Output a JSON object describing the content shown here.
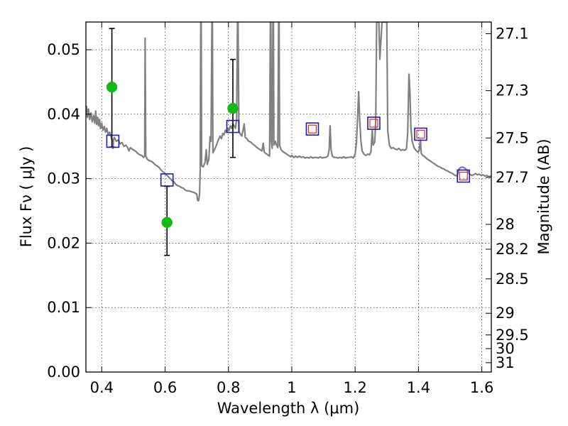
{
  "chart_data": {
    "type": "scatter",
    "title": "",
    "xlabel": "Wavelength  λ (μm)",
    "ylabel": "Flux  Fν  ( μJy )",
    "y2label": "Magnitude (AB)",
    "xlim": [
      0.35,
      1.63
    ],
    "ylim": [
      0.0,
      0.0543
    ],
    "grid": true,
    "x_ticks": [
      0.4,
      0.6,
      0.8,
      1.0,
      1.2,
      1.4,
      1.6
    ],
    "x_tick_labels": [
      "0.4",
      "0.6",
      "0.8",
      "1",
      "1.2",
      "1.4",
      "1.6"
    ],
    "y_ticks": [
      0.0,
      0.01,
      0.02,
      0.03,
      0.04,
      0.05
    ],
    "y_tick_labels": [
      "0.00",
      "0.01",
      "0.02",
      "0.03",
      "0.04",
      "0.05"
    ],
    "y2_ticks": [
      {
        "mag": 27.1,
        "label": "27.1"
      },
      {
        "mag": 27.3,
        "label": "27.3"
      },
      {
        "mag": 27.5,
        "label": "27.5"
      },
      {
        "mag": 27.7,
        "label": "27.7"
      },
      {
        "mag": 28.0,
        "label": "28"
      },
      {
        "mag": 28.2,
        "label": "28.2"
      },
      {
        "mag": 28.5,
        "label": "28.5"
      },
      {
        "mag": 29.0,
        "label": "29"
      },
      {
        "mag": 29.5,
        "label": "29.5"
      },
      {
        "mag": 30.0,
        "label": "30"
      },
      {
        "mag": 31.0,
        "label": "31"
      }
    ],
    "colors": {
      "spectrum": "#808080",
      "observed": "#11bb11",
      "model_box": "#1c1cb0",
      "model_inner": "#ee2222",
      "errorbar": "#000000"
    },
    "spectrum": {
      "name": "",
      "points": [
        [
          0.35,
          0.0405
        ],
        [
          0.352,
          0.0412
        ],
        [
          0.355,
          0.0395
        ],
        [
          0.358,
          0.0408
        ],
        [
          0.362,
          0.0392
        ],
        [
          0.366,
          0.0402
        ],
        [
          0.37,
          0.0388
        ],
        [
          0.374,
          0.0398
        ],
        [
          0.378,
          0.0386
        ],
        [
          0.381,
          0.0405
        ],
        [
          0.384,
          0.0384
        ],
        [
          0.387,
          0.0395
        ],
        [
          0.39,
          0.0382
        ],
        [
          0.393,
          0.0392
        ],
        [
          0.396,
          0.0378
        ],
        [
          0.4,
          0.0386
        ],
        [
          0.404,
          0.0375
        ],
        [
          0.408,
          0.0381
        ],
        [
          0.412,
          0.0372
        ],
        [
          0.416,
          0.0378
        ],
        [
          0.42,
          0.0369
        ],
        [
          0.425,
          0.0372
        ],
        [
          0.43,
          0.0364
        ],
        [
          0.434,
          0.0358
        ],
        [
          0.4355,
          0.0347
        ],
        [
          0.437,
          0.036
        ],
        [
          0.44,
          0.0364
        ],
        [
          0.446,
          0.0358
        ],
        [
          0.452,
          0.036
        ],
        [
          0.458,
          0.0354
        ],
        [
          0.464,
          0.0356
        ],
        [
          0.47,
          0.035
        ],
        [
          0.476,
          0.0352
        ],
        [
          0.482,
          0.0348
        ],
        [
          0.486,
          0.0343
        ],
        [
          0.49,
          0.0348
        ],
        [
          0.496,
          0.0346
        ],
        [
          0.502,
          0.0344
        ],
        [
          0.508,
          0.0342
        ],
        [
          0.514,
          0.0339
        ],
        [
          0.52,
          0.0337
        ],
        [
          0.526,
          0.0336
        ],
        [
          0.532,
          0.0333
        ],
        [
          0.5355,
          0.0335
        ],
        [
          0.537,
          0.0518
        ],
        [
          0.539,
          0.0335
        ],
        [
          0.544,
          0.033
        ],
        [
          0.55,
          0.0328
        ],
        [
          0.556,
          0.0327
        ],
        [
          0.562,
          0.0325
        ],
        [
          0.568,
          0.0322
        ],
        [
          0.574,
          0.032
        ],
        [
          0.58,
          0.0318
        ],
        [
          0.586,
          0.0314
        ],
        [
          0.592,
          0.0311
        ],
        [
          0.598,
          0.0309
        ],
        [
          0.604,
          0.0306
        ],
        [
          0.61,
          0.0303
        ],
        [
          0.616,
          0.03
        ],
        [
          0.622,
          0.0297
        ],
        [
          0.628,
          0.0295
        ],
        [
          0.634,
          0.0291
        ],
        [
          0.64,
          0.0289
        ],
        [
          0.646,
          0.0288
        ],
        [
          0.652,
          0.0286
        ],
        [
          0.658,
          0.0285
        ],
        [
          0.664,
          0.0282
        ],
        [
          0.67,
          0.0281
        ],
        [
          0.676,
          0.0281
        ],
        [
          0.682,
          0.028
        ],
        [
          0.688,
          0.0279
        ],
        [
          0.694,
          0.0278
        ],
        [
          0.7,
          0.0276
        ],
        [
          0.703,
          0.0266
        ],
        [
          0.706,
          0.0266
        ],
        [
          0.709,
          0.0276
        ],
        [
          0.711,
          0.0315
        ],
        [
          0.7125,
          0.0543
        ],
        [
          0.714,
          0.0543
        ],
        [
          0.7155,
          0.032
        ],
        [
          0.72,
          0.0318
        ],
        [
          0.726,
          0.0325
        ],
        [
          0.73,
          0.0345
        ],
        [
          0.733,
          0.0322
        ],
        [
          0.738,
          0.033
        ],
        [
          0.742,
          0.0365
        ],
        [
          0.745,
          0.0358
        ],
        [
          0.748,
          0.0543
        ],
        [
          0.7495,
          0.0543
        ],
        [
          0.751,
          0.034
        ],
        [
          0.756,
          0.0345
        ],
        [
          0.762,
          0.0352
        ],
        [
          0.768,
          0.036
        ],
        [
          0.774,
          0.0366
        ],
        [
          0.778,
          0.0362
        ],
        [
          0.782,
          0.037
        ],
        [
          0.786,
          0.0368
        ],
        [
          0.79,
          0.0375
        ],
        [
          0.794,
          0.0372
        ],
        [
          0.798,
          0.0378
        ],
        [
          0.802,
          0.0375
        ],
        [
          0.806,
          0.0382
        ],
        [
          0.81,
          0.0378
        ],
        [
          0.814,
          0.0385
        ],
        [
          0.818,
          0.0382
        ],
        [
          0.822,
          0.0378
        ],
        [
          0.826,
          0.0392
        ],
        [
          0.8285,
          0.0543
        ],
        [
          0.8305,
          0.0543
        ],
        [
          0.833,
          0.0373
        ],
        [
          0.838,
          0.0369
        ],
        [
          0.842,
          0.0366
        ],
        [
          0.846,
          0.0375
        ],
        [
          0.85,
          0.0385
        ],
        [
          0.853,
          0.0364
        ],
        [
          0.858,
          0.0362
        ],
        [
          0.864,
          0.0358
        ],
        [
          0.87,
          0.0357
        ],
        [
          0.876,
          0.0354
        ],
        [
          0.882,
          0.0352
        ],
        [
          0.888,
          0.0349
        ],
        [
          0.894,
          0.0347
        ],
        [
          0.9,
          0.0345
        ],
        [
          0.906,
          0.0343
        ],
        [
          0.91,
          0.0355
        ],
        [
          0.913,
          0.0341
        ],
        [
          0.918,
          0.0339
        ],
        [
          0.924,
          0.0337
        ],
        [
          0.93,
          0.0335
        ],
        [
          0.9325,
          0.0543
        ],
        [
          0.934,
          0.0543
        ],
        [
          0.9355,
          0.0358
        ],
        [
          0.938,
          0.0347
        ],
        [
          0.9405,
          0.0543
        ],
        [
          0.942,
          0.0543
        ],
        [
          0.9435,
          0.0352
        ],
        [
          0.948,
          0.0358
        ],
        [
          0.952,
          0.0352
        ],
        [
          0.956,
          0.0348
        ],
        [
          0.9585,
          0.0543
        ],
        [
          0.96,
          0.0543
        ],
        [
          0.9615,
          0.0352
        ],
        [
          0.966,
          0.0345
        ],
        [
          0.972,
          0.0342
        ],
        [
          0.978,
          0.034
        ],
        [
          0.984,
          0.0338
        ],
        [
          0.99,
          0.0336
        ],
        [
          0.996,
          0.0334
        ],
        [
          1.0,
          0.0336
        ],
        [
          1.006,
          0.0333
        ],
        [
          1.012,
          0.0335
        ],
        [
          1.018,
          0.0333
        ],
        [
          1.024,
          0.0335
        ],
        [
          1.03,
          0.0333
        ],
        [
          1.036,
          0.0334
        ],
        [
          1.042,
          0.0332
        ],
        [
          1.048,
          0.0333
        ],
        [
          1.054,
          0.0332
        ],
        [
          1.06,
          0.0334
        ],
        [
          1.066,
          0.0332
        ],
        [
          1.072,
          0.0333
        ],
        [
          1.078,
          0.0333
        ],
        [
          1.084,
          0.0332
        ],
        [
          1.09,
          0.0334
        ],
        [
          1.096,
          0.0332
        ],
        [
          1.102,
          0.0333
        ],
        [
          1.108,
          0.0333
        ],
        [
          1.114,
          0.0335
        ],
        [
          1.118,
          0.0345
        ],
        [
          1.121,
          0.0382
        ],
        [
          1.124,
          0.0345
        ],
        [
          1.128,
          0.0335
        ],
        [
          1.134,
          0.0333
        ],
        [
          1.14,
          0.0333
        ],
        [
          1.146,
          0.0332
        ],
        [
          1.152,
          0.0333
        ],
        [
          1.158,
          0.0332
        ],
        [
          1.164,
          0.0334
        ],
        [
          1.17,
          0.0332
        ],
        [
          1.176,
          0.0333
        ],
        [
          1.182,
          0.0333
        ],
        [
          1.188,
          0.0334
        ],
        [
          1.194,
          0.0332
        ],
        [
          1.2,
          0.0338
        ],
        [
          1.204,
          0.0355
        ],
        [
          1.208,
          0.0395
        ],
        [
          1.211,
          0.0435
        ],
        [
          1.214,
          0.0398
        ],
        [
          1.218,
          0.036
        ],
        [
          1.222,
          0.0343
        ],
        [
          1.228,
          0.0338
        ],
        [
          1.234,
          0.0336
        ],
        [
          1.24,
          0.0338
        ],
        [
          1.246,
          0.0337
        ],
        [
          1.25,
          0.0342
        ],
        [
          1.254,
          0.0375
        ],
        [
          1.257,
          0.0352
        ],
        [
          1.262,
          0.0357
        ],
        [
          1.265,
          0.039
        ],
        [
          1.268,
          0.0543
        ],
        [
          1.275,
          0.0543
        ],
        [
          1.278,
          0.0485
        ],
        [
          1.282,
          0.052
        ],
        [
          1.285,
          0.0543
        ],
        [
          1.3,
          0.0543
        ],
        [
          1.303,
          0.0375
        ],
        [
          1.308,
          0.0352
        ],
        [
          1.314,
          0.0347
        ],
        [
          1.32,
          0.0348
        ],
        [
          1.326,
          0.0346
        ],
        [
          1.332,
          0.0345
        ],
        [
          1.338,
          0.0347
        ],
        [
          1.344,
          0.0344
        ],
        [
          1.35,
          0.0345
        ],
        [
          1.356,
          0.0344
        ],
        [
          1.362,
          0.0346
        ],
        [
          1.366,
          0.037
        ],
        [
          1.37,
          0.0462
        ],
        [
          1.373,
          0.0435
        ],
        [
          1.376,
          0.038
        ],
        [
          1.38,
          0.0358
        ],
        [
          1.386,
          0.0348
        ],
        [
          1.392,
          0.0344
        ],
        [
          1.398,
          0.0341
        ],
        [
          1.402,
          0.0343
        ],
        [
          1.406,
          0.036
        ],
        [
          1.409,
          0.0339
        ],
        [
          1.414,
          0.0336
        ],
        [
          1.42,
          0.0334
        ],
        [
          1.426,
          0.0331
        ],
        [
          1.432,
          0.0329
        ],
        [
          1.438,
          0.0327
        ],
        [
          1.444,
          0.0325
        ],
        [
          1.45,
          0.0323
        ],
        [
          1.456,
          0.0321
        ],
        [
          1.462,
          0.0319
        ],
        [
          1.468,
          0.0318
        ],
        [
          1.474,
          0.0316
        ],
        [
          1.48,
          0.0315
        ],
        [
          1.486,
          0.0313
        ],
        [
          1.492,
          0.0312
        ],
        [
          1.498,
          0.031
        ],
        [
          1.504,
          0.0309
        ],
        [
          1.51,
          0.0307
        ],
        [
          1.516,
          0.0305
        ],
        [
          1.522,
          0.0304
        ],
        [
          1.528,
          0.0315
        ],
        [
          1.532,
          0.0317
        ],
        [
          1.538,
          0.0318
        ],
        [
          1.544,
          0.0317
        ],
        [
          1.55,
          0.0315
        ],
        [
          1.556,
          0.0311
        ],
        [
          1.562,
          0.0307
        ],
        [
          1.568,
          0.0305
        ],
        [
          1.574,
          0.0306
        ],
        [
          1.58,
          0.0308
        ],
        [
          1.586,
          0.0306
        ],
        [
          1.592,
          0.0307
        ],
        [
          1.598,
          0.0305
        ],
        [
          1.604,
          0.0306
        ],
        [
          1.61,
          0.0304
        ],
        [
          1.616,
          0.0305
        ],
        [
          1.622,
          0.0303
        ],
        [
          1.628,
          0.0304
        ],
        [
          1.63,
          0.0303
        ]
      ]
    },
    "observed": {
      "name": "",
      "points": [
        {
          "x": 0.432,
          "y": 0.0442,
          "err_low": 0.0093,
          "err_high": 0.0091
        },
        {
          "x": 0.606,
          "y": 0.0232,
          "err_low": 0.0051,
          "err_high": 0.0056
        },
        {
          "x": 0.814,
          "y": 0.0409,
          "err_low": 0.0076,
          "err_high": 0.0076
        }
      ]
    },
    "model_photometry": {
      "name": "",
      "points": [
        {
          "x": 0.435,
          "y": 0.0358
        },
        {
          "x": 0.606,
          "y": 0.0298
        },
        {
          "x": 0.814,
          "y": 0.0381
        },
        {
          "x": 1.065,
          "y": 0.0377
        },
        {
          "x": 1.259,
          "y": 0.0386
        },
        {
          "x": 1.407,
          "y": 0.0369
        },
        {
          "x": 1.542,
          "y": 0.0304
        }
      ]
    },
    "model_inner": {
      "name": "",
      "points": [
        {
          "x": 1.065,
          "y": 0.0377
        },
        {
          "x": 1.259,
          "y": 0.0386
        },
        {
          "x": 1.407,
          "y": 0.0369
        },
        {
          "x": 1.542,
          "y": 0.0304
        }
      ]
    }
  }
}
